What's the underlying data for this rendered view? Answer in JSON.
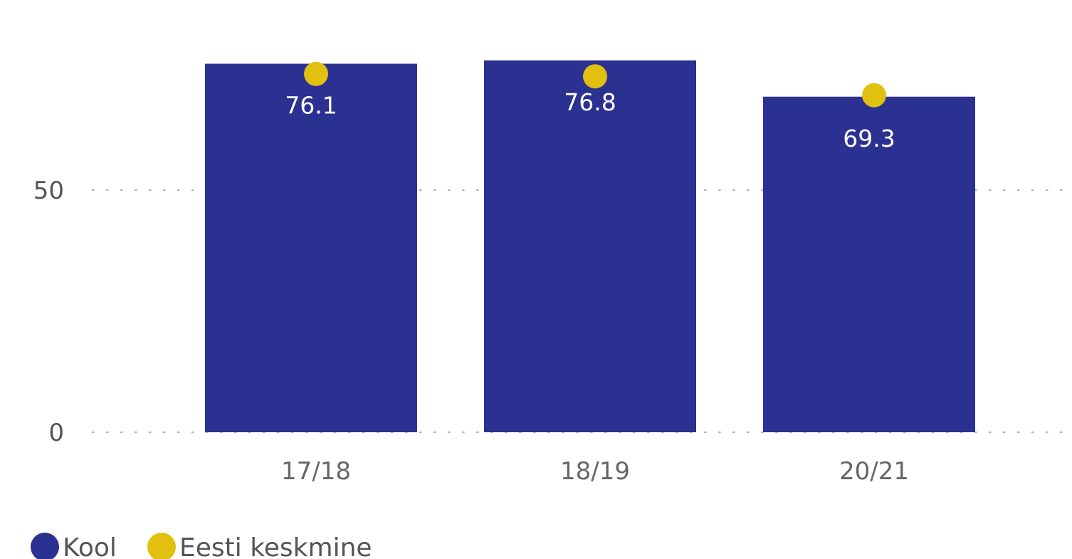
{
  "chart_data": {
    "type": "bar",
    "categories": [
      "17/18",
      "18/19",
      "20/21"
    ],
    "series": [
      {
        "name": "Kool",
        "kind": "bar",
        "values": [
          76.1,
          76.8,
          69.3
        ],
        "color": "#2B3190"
      },
      {
        "name": "Eesti keskmine",
        "kind": "point",
        "values": [
          74.0,
          73.5,
          69.6
        ],
        "color": "#E1C00F"
      }
    ],
    "data_labels": [
      "76.1",
      "76.8",
      "69.3"
    ],
    "y_ticks": [
      0,
      50
    ],
    "ylim": [
      0,
      88
    ],
    "grid": "horizontal dotted",
    "legend_position": "bottom-left",
    "title": "",
    "xlabel": "",
    "ylabel": ""
  },
  "legend": {
    "items": [
      {
        "label": "Kool",
        "color": "#2B3190"
      },
      {
        "label": "Eesti keskmine",
        "color": "#E1C00F"
      }
    ]
  }
}
